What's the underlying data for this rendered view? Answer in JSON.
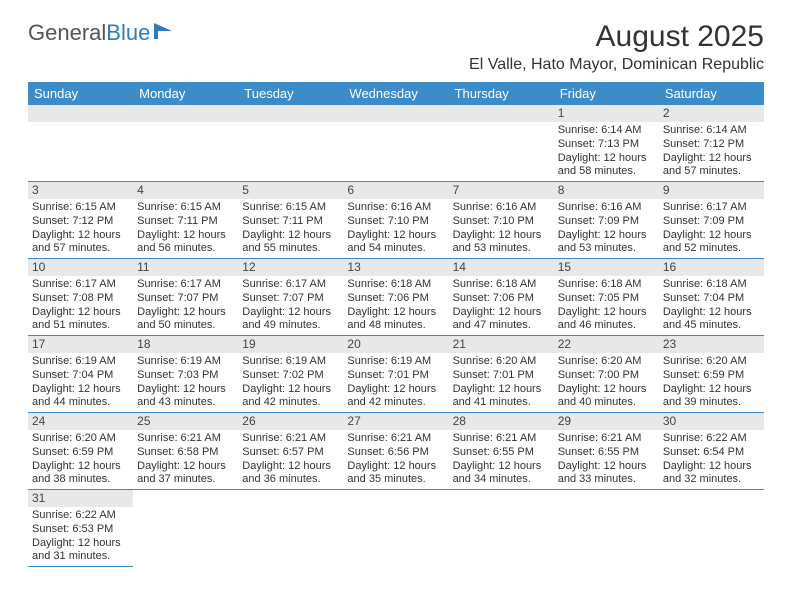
{
  "brand": {
    "part1": "General",
    "part2": "Blue"
  },
  "title": "August 2025",
  "location": "El Valle, Hato Mayor, Dominican Republic",
  "colors": {
    "header_bg": "#3b8cc9",
    "header_text": "#ffffff",
    "daynum_bg": "#e8e8e8",
    "row_border": "#3b8cc9",
    "text": "#333333",
    "brand_gray": "#555555",
    "brand_blue": "#2b7bbf"
  },
  "weekdays": [
    "Sunday",
    "Monday",
    "Tuesday",
    "Wednesday",
    "Thursday",
    "Friday",
    "Saturday"
  ],
  "weeks": [
    [
      null,
      null,
      null,
      null,
      null,
      {
        "n": "1",
        "sr": "6:14 AM",
        "ss": "7:13 PM",
        "dl": "12 hours and 58 minutes."
      },
      {
        "n": "2",
        "sr": "6:14 AM",
        "ss": "7:12 PM",
        "dl": "12 hours and 57 minutes."
      }
    ],
    [
      {
        "n": "3",
        "sr": "6:15 AM",
        "ss": "7:12 PM",
        "dl": "12 hours and 57 minutes."
      },
      {
        "n": "4",
        "sr": "6:15 AM",
        "ss": "7:11 PM",
        "dl": "12 hours and 56 minutes."
      },
      {
        "n": "5",
        "sr": "6:15 AM",
        "ss": "7:11 PM",
        "dl": "12 hours and 55 minutes."
      },
      {
        "n": "6",
        "sr": "6:16 AM",
        "ss": "7:10 PM",
        "dl": "12 hours and 54 minutes."
      },
      {
        "n": "7",
        "sr": "6:16 AM",
        "ss": "7:10 PM",
        "dl": "12 hours and 53 minutes."
      },
      {
        "n": "8",
        "sr": "6:16 AM",
        "ss": "7:09 PM",
        "dl": "12 hours and 53 minutes."
      },
      {
        "n": "9",
        "sr": "6:17 AM",
        "ss": "7:09 PM",
        "dl": "12 hours and 52 minutes."
      }
    ],
    [
      {
        "n": "10",
        "sr": "6:17 AM",
        "ss": "7:08 PM",
        "dl": "12 hours and 51 minutes."
      },
      {
        "n": "11",
        "sr": "6:17 AM",
        "ss": "7:07 PM",
        "dl": "12 hours and 50 minutes."
      },
      {
        "n": "12",
        "sr": "6:17 AM",
        "ss": "7:07 PM",
        "dl": "12 hours and 49 minutes."
      },
      {
        "n": "13",
        "sr": "6:18 AM",
        "ss": "7:06 PM",
        "dl": "12 hours and 48 minutes."
      },
      {
        "n": "14",
        "sr": "6:18 AM",
        "ss": "7:06 PM",
        "dl": "12 hours and 47 minutes."
      },
      {
        "n": "15",
        "sr": "6:18 AM",
        "ss": "7:05 PM",
        "dl": "12 hours and 46 minutes."
      },
      {
        "n": "16",
        "sr": "6:18 AM",
        "ss": "7:04 PM",
        "dl": "12 hours and 45 minutes."
      }
    ],
    [
      {
        "n": "17",
        "sr": "6:19 AM",
        "ss": "7:04 PM",
        "dl": "12 hours and 44 minutes."
      },
      {
        "n": "18",
        "sr": "6:19 AM",
        "ss": "7:03 PM",
        "dl": "12 hours and 43 minutes."
      },
      {
        "n": "19",
        "sr": "6:19 AM",
        "ss": "7:02 PM",
        "dl": "12 hours and 42 minutes."
      },
      {
        "n": "20",
        "sr": "6:19 AM",
        "ss": "7:01 PM",
        "dl": "12 hours and 42 minutes."
      },
      {
        "n": "21",
        "sr": "6:20 AM",
        "ss": "7:01 PM",
        "dl": "12 hours and 41 minutes."
      },
      {
        "n": "22",
        "sr": "6:20 AM",
        "ss": "7:00 PM",
        "dl": "12 hours and 40 minutes."
      },
      {
        "n": "23",
        "sr": "6:20 AM",
        "ss": "6:59 PM",
        "dl": "12 hours and 39 minutes."
      }
    ],
    [
      {
        "n": "24",
        "sr": "6:20 AM",
        "ss": "6:59 PM",
        "dl": "12 hours and 38 minutes."
      },
      {
        "n": "25",
        "sr": "6:21 AM",
        "ss": "6:58 PM",
        "dl": "12 hours and 37 minutes."
      },
      {
        "n": "26",
        "sr": "6:21 AM",
        "ss": "6:57 PM",
        "dl": "12 hours and 36 minutes."
      },
      {
        "n": "27",
        "sr": "6:21 AM",
        "ss": "6:56 PM",
        "dl": "12 hours and 35 minutes."
      },
      {
        "n": "28",
        "sr": "6:21 AM",
        "ss": "6:55 PM",
        "dl": "12 hours and 34 minutes."
      },
      {
        "n": "29",
        "sr": "6:21 AM",
        "ss": "6:55 PM",
        "dl": "12 hours and 33 minutes."
      },
      {
        "n": "30",
        "sr": "6:22 AM",
        "ss": "6:54 PM",
        "dl": "12 hours and 32 minutes."
      }
    ],
    [
      {
        "n": "31",
        "sr": "6:22 AM",
        "ss": "6:53 PM",
        "dl": "12 hours and 31 minutes."
      },
      null,
      null,
      null,
      null,
      null,
      null
    ]
  ],
  "labels": {
    "sunrise": "Sunrise: ",
    "sunset": "Sunset: ",
    "daylight": "Daylight: "
  }
}
